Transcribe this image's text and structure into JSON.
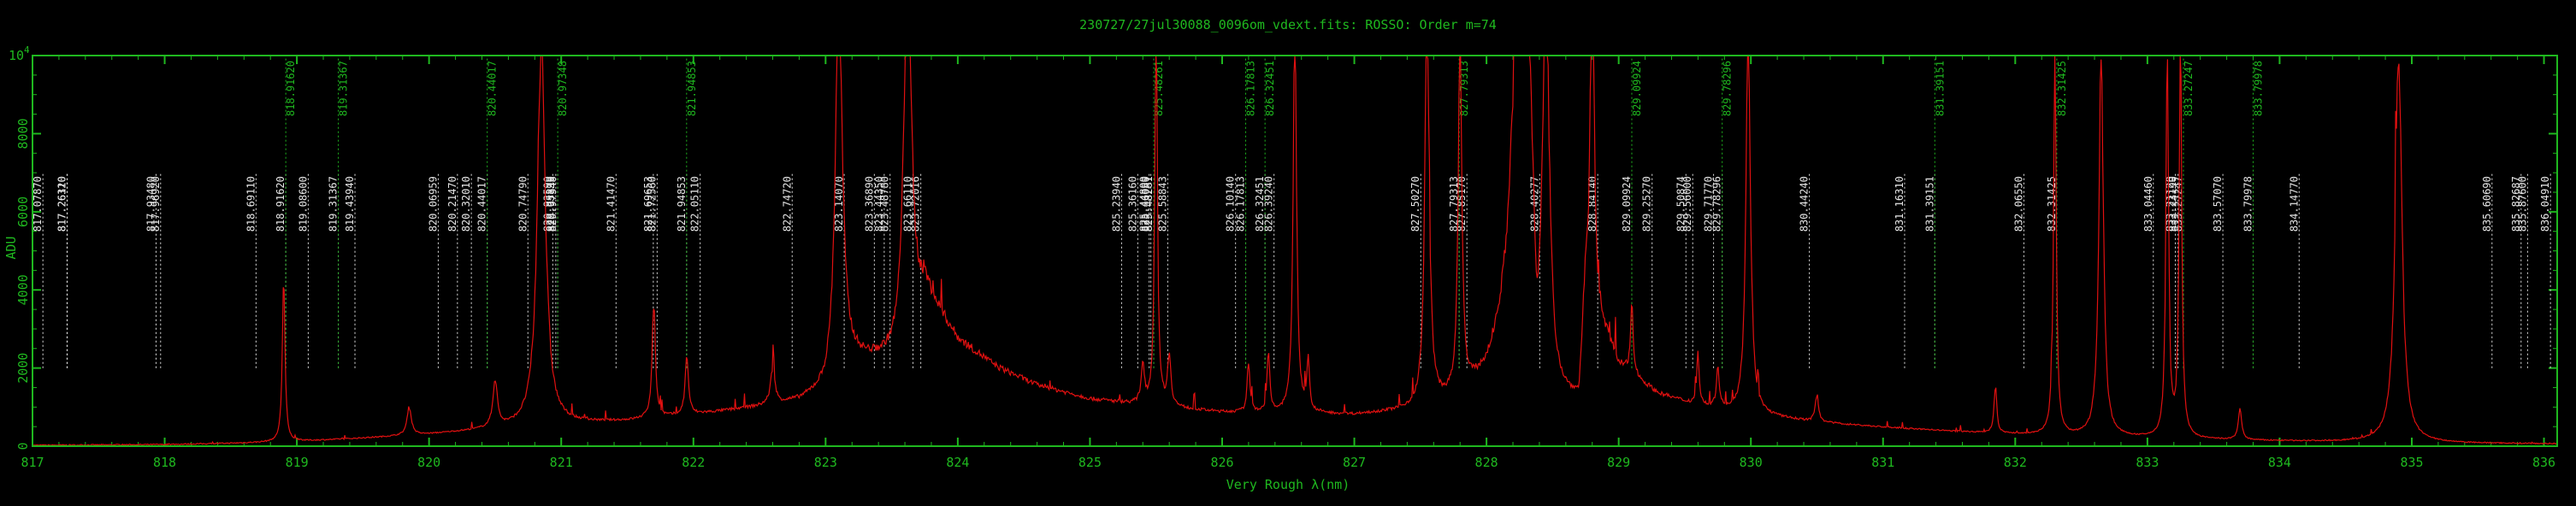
{
  "chart_data": {
    "type": "line",
    "title": "230727/27jul30088_0096om_vdext.fits: ROSSO: Order m=74",
    "xlabel": "Very Rough λ(nm)",
    "ylabel": "ADU",
    "y_exponent_label": "10",
    "y_exponent_sup": "4",
    "xlim": [
      817.0,
      836.1
    ],
    "ylim": [
      0,
      10000
    ],
    "x_ticks": [
      817,
      818,
      819,
      820,
      821,
      822,
      823,
      824,
      825,
      826,
      827,
      828,
      829,
      830,
      831,
      832,
      833,
      834,
      835,
      836
    ],
    "y_ticks": [
      0,
      2000,
      4000,
      6000,
      8000
    ],
    "colors": {
      "axes": "#1fb81f",
      "spectrum": "#e01010",
      "line_white": "#e6e6e6",
      "line_green": "#1fb81f"
    },
    "continuum": [
      [
        817.0,
        20
      ],
      [
        818.0,
        40
      ],
      [
        818.5,
        70
      ],
      [
        819.0,
        120
      ],
      [
        819.5,
        200
      ],
      [
        820.0,
        300
      ],
      [
        820.5,
        430
      ],
      [
        820.8,
        520
      ],
      [
        821.0,
        560
      ],
      [
        821.5,
        640
      ],
      [
        822.0,
        800
      ],
      [
        822.5,
        1000
      ],
      [
        822.8,
        1150
      ],
      [
        823.0,
        1400
      ],
      [
        823.15,
        2200
      ],
      [
        823.6,
        2200
      ],
      [
        823.75,
        3900
      ],
      [
        824.0,
        2700
      ],
      [
        824.3,
        2000
      ],
      [
        824.6,
        1550
      ],
      [
        825.0,
        1200
      ],
      [
        825.5,
        1000
      ],
      [
        826.0,
        860
      ],
      [
        826.5,
        820
      ],
      [
        827.0,
        780
      ],
      [
        827.5,
        900
      ],
      [
        827.8,
        1200
      ],
      [
        828.0,
        1700
      ],
      [
        828.2,
        3000
      ],
      [
        828.32,
        7000
      ],
      [
        828.38,
        1000
      ],
      [
        828.7,
        1000
      ],
      [
        828.75,
        4000
      ],
      [
        829.0,
        2000
      ],
      [
        829.3,
        1300
      ],
      [
        829.6,
        1000
      ],
      [
        830.0,
        800
      ],
      [
        830.5,
        600
      ],
      [
        831.0,
        480
      ],
      [
        831.5,
        380
      ],
      [
        832.0,
        300
      ],
      [
        832.5,
        240
      ],
      [
        833.0,
        200
      ],
      [
        833.5,
        160
      ],
      [
        834.0,
        130
      ],
      [
        834.5,
        110
      ],
      [
        835.0,
        90
      ],
      [
        835.5,
        70
      ],
      [
        836.1,
        60
      ]
    ],
    "emission_peaks": [
      [
        818.9,
        4200,
        0.012
      ],
      [
        819.85,
        700,
        0.02
      ],
      [
        820.5,
        1200,
        0.02
      ],
      [
        820.85,
        10000,
        0.035
      ],
      [
        821.7,
        2900,
        0.015
      ],
      [
        821.95,
        1500,
        0.015
      ],
      [
        822.6,
        900,
        0.02
      ],
      [
        823.1,
        10000,
        0.03
      ],
      [
        823.62,
        10000,
        0.035
      ],
      [
        825.4,
        1000,
        0.015
      ],
      [
        825.5,
        10000,
        0.012
      ],
      [
        825.6,
        1300,
        0.015
      ],
      [
        826.2,
        1300,
        0.012
      ],
      [
        826.35,
        1500,
        0.012
      ],
      [
        826.55,
        10000,
        0.015
      ],
      [
        826.65,
        1300,
        0.012
      ],
      [
        827.55,
        10000,
        0.02
      ],
      [
        827.8,
        10000,
        0.015
      ],
      [
        828.25,
        10000,
        0.06
      ],
      [
        828.45,
        10000,
        0.03
      ],
      [
        828.8,
        10000,
        0.015
      ],
      [
        829.1,
        1800,
        0.012
      ],
      [
        829.6,
        1300,
        0.012
      ],
      [
        829.75,
        1100,
        0.012
      ],
      [
        829.98,
        10000,
        0.02
      ],
      [
        830.5,
        700,
        0.015
      ],
      [
        831.85,
        1200,
        0.012
      ],
      [
        832.3,
        10000,
        0.012
      ],
      [
        832.65,
        10000,
        0.02
      ],
      [
        833.15,
        10000,
        0.012
      ],
      [
        833.25,
        10000,
        0.012
      ],
      [
        833.7,
        800,
        0.015
      ],
      [
        834.9,
        10000,
        0.03
      ]
    ],
    "line_markers": [
      {
        "x": 817.0787,
        "label": "817.07870",
        "color": "white",
        "y_bottom": 2000,
        "y_top": 7000
      },
      {
        "x": 817.2611,
        "label": "817.26110",
        "color": "white",
        "y_bottom": 2000,
        "y_top": 7000
      },
      {
        "x": 817.2632,
        "label": "817.26320",
        "color": "white",
        "y_bottom": 2000,
        "y_top": 7000
      },
      {
        "x": 817.9348,
        "label": "817.93480",
        "color": "white",
        "y_bottom": 2000,
        "y_top": 7000
      },
      {
        "x": 817.9692,
        "label": "817.96920",
        "color": "white",
        "y_bottom": 2000,
        "y_top": 7000
      },
      {
        "x": 818.6911,
        "label": "818.69110",
        "color": "white",
        "y_bottom": 2000,
        "y_top": 7000
      },
      {
        "x": 818.9162,
        "label": "818.91620",
        "color": "white",
        "y_bottom": 2000,
        "y_top": 7000
      },
      {
        "x": 818.9162,
        "label": "818.91620",
        "color": "green",
        "y_bottom": 2000,
        "y_top": 10000
      },
      {
        "x": 819.086,
        "label": "819.08600",
        "color": "white",
        "y_bottom": 2000,
        "y_top": 7000
      },
      {
        "x": 819.31367,
        "label": "819.31367",
        "color": "white",
        "y_bottom": 2000,
        "y_top": 7000
      },
      {
        "x": 819.31367,
        "label": "819.31367",
        "color": "green",
        "y_bottom": 2000,
        "y_top": 10000
      },
      {
        "x": 819.4394,
        "label": "819.43940",
        "color": "white",
        "y_bottom": 2000,
        "y_top": 7000
      },
      {
        "x": 820.06959,
        "label": "820.06959",
        "color": "white",
        "y_bottom": 2000,
        "y_top": 7000
      },
      {
        "x": 820.2147,
        "label": "820.21470",
        "color": "white",
        "y_bottom": 2000,
        "y_top": 7000
      },
      {
        "x": 820.3201,
        "label": "820.32010",
        "color": "white",
        "y_bottom": 2000,
        "y_top": 7000
      },
      {
        "x": 820.44017,
        "label": "820.44017",
        "color": "white",
        "y_bottom": 2000,
        "y_top": 7000
      },
      {
        "x": 820.44017,
        "label": "820.44017",
        "color": "green",
        "y_bottom": 2000,
        "y_top": 10000
      },
      {
        "x": 820.7479,
        "label": "820.74790",
        "color": "white",
        "y_bottom": 2000,
        "y_top": 7000
      },
      {
        "x": 820.9359,
        "label": "820.93590",
        "color": "white",
        "y_bottom": 2000,
        "y_top": 7000
      },
      {
        "x": 820.9589,
        "label": "820.95890",
        "color": "white",
        "y_bottom": 2000,
        "y_top": 7000
      },
      {
        "x": 820.97348,
        "label": "820.97348",
        "color": "white",
        "y_bottom": 2000,
        "y_top": 7000
      },
      {
        "x": 820.97348,
        "label": "820.97348",
        "color": "green",
        "y_bottom": 2000,
        "y_top": 10000
      },
      {
        "x": 821.4147,
        "label": "821.41470",
        "color": "white",
        "y_bottom": 2000,
        "y_top": 7000
      },
      {
        "x": 821.69653,
        "label": "821.69653",
        "color": "white",
        "y_bottom": 2000,
        "y_top": 7000
      },
      {
        "x": 821.7256,
        "label": "821.72560",
        "color": "white",
        "y_bottom": 2000,
        "y_top": 7000
      },
      {
        "x": 821.94853,
        "label": "821.94853",
        "color": "white",
        "y_bottom": 2000,
        "y_top": 7000
      },
      {
        "x": 821.94853,
        "label": "821.94853",
        "color": "green",
        "y_bottom": 2000,
        "y_top": 10000
      },
      {
        "x": 822.0511,
        "label": "822.05110",
        "color": "white",
        "y_bottom": 2000,
        "y_top": 7000
      },
      {
        "x": 822.7472,
        "label": "822.74720",
        "color": "white",
        "y_bottom": 2000,
        "y_top": 7000
      },
      {
        "x": 823.1407,
        "label": "823.14070",
        "color": "white",
        "y_bottom": 2000,
        "y_top": 7000
      },
      {
        "x": 823.3689,
        "label": "823.36890",
        "color": "white",
        "y_bottom": 2000,
        "y_top": 7000
      },
      {
        "x": 823.4435,
        "label": "823.44350",
        "color": "white",
        "y_bottom": 2000,
        "y_top": 7000
      },
      {
        "x": 823.4878,
        "label": "823.48780",
        "color": "white",
        "y_bottom": 2000,
        "y_top": 7000
      },
      {
        "x": 823.6611,
        "label": "823.66110",
        "color": "white",
        "y_bottom": 2000,
        "y_top": 7000
      },
      {
        "x": 823.72016,
        "label": "823.72016",
        "color": "white",
        "y_bottom": 2000,
        "y_top": 7000
      },
      {
        "x": 825.2394,
        "label": "825.23940",
        "color": "white",
        "y_bottom": 2000,
        "y_top": 7000
      },
      {
        "x": 825.3616,
        "label": "825.36160",
        "color": "white",
        "y_bottom": 2000,
        "y_top": 7000
      },
      {
        "x": 825.448,
        "label": "825.44800",
        "color": "white",
        "y_bottom": 2000,
        "y_top": 7000
      },
      {
        "x": 825.4608,
        "label": "825.46080",
        "color": "white",
        "y_bottom": 2000,
        "y_top": 7000
      },
      {
        "x": 825.48261,
        "label": "825.48261",
        "color": "white",
        "y_bottom": 2000,
        "y_top": 7000
      },
      {
        "x": 825.48261,
        "label": "825.48261",
        "color": "green",
        "y_bottom": 2000,
        "y_top": 10000
      },
      {
        "x": 825.58843,
        "label": "825.58843",
        "color": "white",
        "y_bottom": 2000,
        "y_top": 7000
      },
      {
        "x": 826.1014,
        "label": "826.10140",
        "color": "white",
        "y_bottom": 2000,
        "y_top": 7000
      },
      {
        "x": 826.17813,
        "label": "826.17813",
        "color": "white",
        "y_bottom": 2000,
        "y_top": 7000
      },
      {
        "x": 826.17813,
        "label": "826.17813",
        "color": "green",
        "y_bottom": 2000,
        "y_top": 10000
      },
      {
        "x": 826.32451,
        "label": "826.32451",
        "color": "white",
        "y_bottom": 2000,
        "y_top": 7000
      },
      {
        "x": 826.32451,
        "label": "826.32451",
        "color": "green",
        "y_bottom": 2000,
        "y_top": 10000
      },
      {
        "x": 826.3924,
        "label": "826.39240",
        "color": "white",
        "y_bottom": 2000,
        "y_top": 7000
      },
      {
        "x": 827.5027,
        "label": "827.50270",
        "color": "white",
        "y_bottom": 2000,
        "y_top": 7000
      },
      {
        "x": 827.79313,
        "label": "827.79313",
        "color": "white",
        "y_bottom": 2000,
        "y_top": 7000
      },
      {
        "x": 827.79313,
        "label": "827.79313",
        "color": "green",
        "y_bottom": 2000,
        "y_top": 10000
      },
      {
        "x": 827.8517,
        "label": "827.85170",
        "color": "white",
        "y_bottom": 2000,
        "y_top": 7000
      },
      {
        "x": 828.40277,
        "label": "828.40277",
        "color": "white",
        "y_bottom": 2000,
        "y_top": 7000
      },
      {
        "x": 828.8414,
        "label": "828.84140",
        "color": "white",
        "y_bottom": 2000,
        "y_top": 7000
      },
      {
        "x": 829.09924,
        "label": "829.09924",
        "color": "white",
        "y_bottom": 2000,
        "y_top": 7000
      },
      {
        "x": 829.09924,
        "label": "829.09924",
        "color": "green",
        "y_bottom": 2000,
        "y_top": 10000
      },
      {
        "x": 829.2527,
        "label": "829.25270",
        "color": "white",
        "y_bottom": 2000,
        "y_top": 7000
      },
      {
        "x": 829.50874,
        "label": "829.50874",
        "color": "white",
        "y_bottom": 2000,
        "y_top": 7000
      },
      {
        "x": 829.56,
        "label": "829.56000",
        "color": "white",
        "y_bottom": 2000,
        "y_top": 7000
      },
      {
        "x": 829.7177,
        "label": "829.71770",
        "color": "white",
        "y_bottom": 2000,
        "y_top": 7000
      },
      {
        "x": 829.78296,
        "label": "829.78296",
        "color": "white",
        "y_bottom": 2000,
        "y_top": 7000
      },
      {
        "x": 829.78296,
        "label": "829.78296",
        "color": "green",
        "y_bottom": 2000,
        "y_top": 10000
      },
      {
        "x": 830.4424,
        "label": "830.44240",
        "color": "white",
        "y_bottom": 2000,
        "y_top": 7000
      },
      {
        "x": 831.1631,
        "label": "831.16310",
        "color": "white",
        "y_bottom": 2000,
        "y_top": 7000
      },
      {
        "x": 831.39151,
        "label": "831.39151",
        "color": "white",
        "y_bottom": 2000,
        "y_top": 7000
      },
      {
        "x": 831.39151,
        "label": "831.39151",
        "color": "green",
        "y_bottom": 2000,
        "y_top": 10000
      },
      {
        "x": 832.0655,
        "label": "832.06550",
        "color": "white",
        "y_bottom": 2000,
        "y_top": 7000
      },
      {
        "x": 832.31425,
        "label": "832.31425",
        "color": "white",
        "y_bottom": 2000,
        "y_top": 7000
      },
      {
        "x": 832.31425,
        "label": "832.31425",
        "color": "green",
        "y_bottom": 2000,
        "y_top": 10000
      },
      {
        "x": 833.0446,
        "label": "833.04460",
        "color": "white",
        "y_bottom": 2000,
        "y_top": 7000
      },
      {
        "x": 833.2112,
        "label": "833.21120",
        "color": "white",
        "y_bottom": 2000,
        "y_top": 7000
      },
      {
        "x": 833.2319,
        "label": "833.23190",
        "color": "white",
        "y_bottom": 2000,
        "y_top": 7000
      },
      {
        "x": 833.27247,
        "label": "833.27247",
        "color": "white",
        "y_bottom": 2000,
        "y_top": 7000
      },
      {
        "x": 833.27247,
        "label": "833.27247",
        "color": "green",
        "y_bottom": 2000,
        "y_top": 10000
      },
      {
        "x": 833.5707,
        "label": "833.57070",
        "color": "white",
        "y_bottom": 2000,
        "y_top": 7000
      },
      {
        "x": 833.79978,
        "label": "833.79978",
        "color": "white",
        "y_bottom": 2000,
        "y_top": 7000
      },
      {
        "x": 833.79978,
        "label": "833.79978",
        "color": "green",
        "y_bottom": 2000,
        "y_top": 10000
      },
      {
        "x": 834.1477,
        "label": "834.14770",
        "color": "white",
        "y_bottom": 2000,
        "y_top": 7000
      },
      {
        "x": 835.6069,
        "label": "835.60690",
        "color": "white",
        "y_bottom": 2000,
        "y_top": 7000
      },
      {
        "x": 835.82687,
        "label": "835.82687",
        "color": "white",
        "y_bottom": 2000,
        "y_top": 7000
      },
      {
        "x": 835.876,
        "label": "835.87600",
        "color": "white",
        "y_bottom": 2000,
        "y_top": 7000
      },
      {
        "x": 836.0491,
        "label": "836.04910",
        "color": "white",
        "y_bottom": 2000,
        "y_top": 7000
      }
    ]
  }
}
